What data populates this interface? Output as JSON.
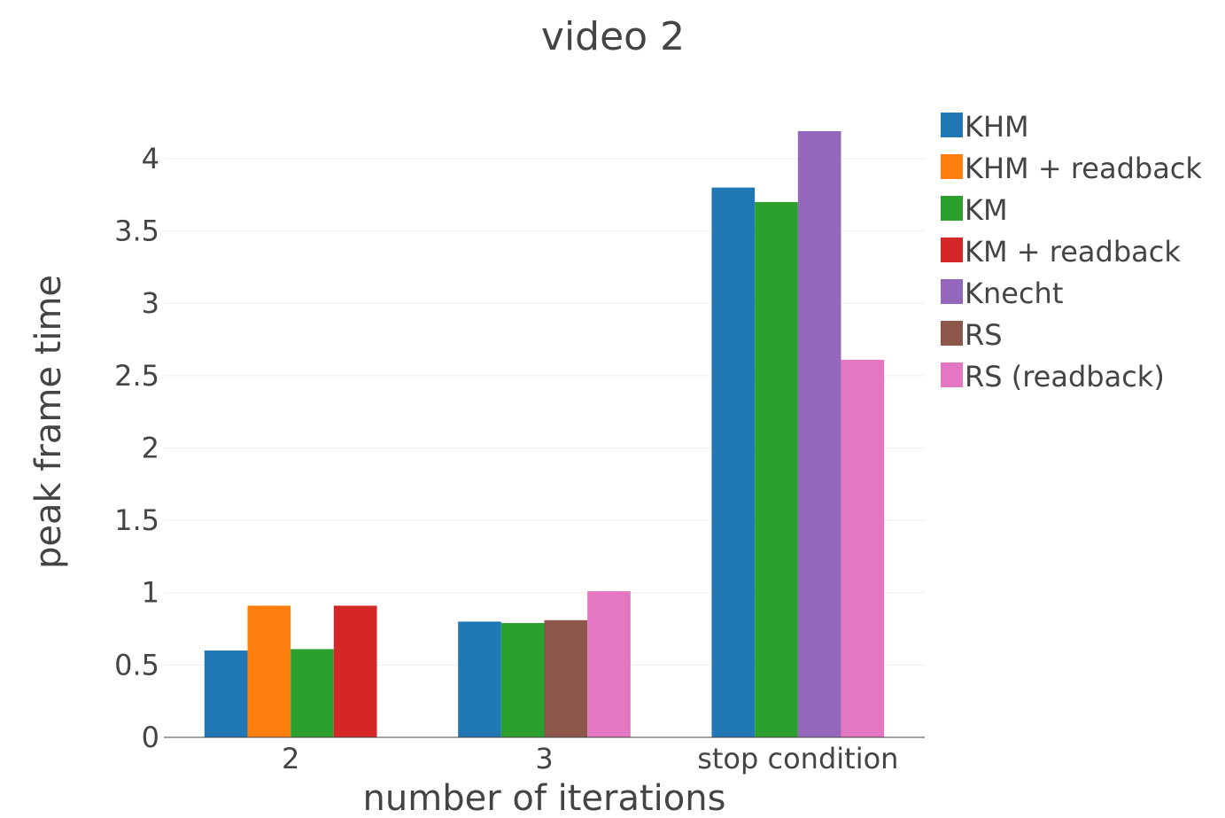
{
  "chart_data": {
    "type": "bar",
    "title": "video 2",
    "xlabel": "number of iterations",
    "ylabel": "peak frame time",
    "categories": [
      "2",
      "3",
      "stop condition"
    ],
    "ylim": [
      0,
      4.3
    ],
    "yticks": [
      0,
      0.5,
      1,
      1.5,
      2,
      2.5,
      3,
      3.5,
      4
    ],
    "ytick_labels": [
      "0",
      "0.5",
      "1",
      "1.5",
      "2",
      "2.5",
      "3",
      "3.5",
      "4"
    ],
    "grid": true,
    "legend_position": "right",
    "series": [
      {
        "name": "KHM",
        "color": "#1f77b4",
        "values": [
          0.6,
          0.8,
          3.8
        ]
      },
      {
        "name": "KHM + readback",
        "color": "#ff7f0e",
        "values": [
          0.91,
          null,
          null
        ]
      },
      {
        "name": "KM",
        "color": "#2ca02c",
        "values": [
          0.61,
          0.79,
          3.7
        ]
      },
      {
        "name": "KM + readback",
        "color": "#d62728",
        "values": [
          0.91,
          null,
          null
        ]
      },
      {
        "name": "Knecht",
        "color": "#9467bd",
        "values": [
          null,
          null,
          4.19
        ]
      },
      {
        "name": "RS",
        "color": "#8c564b",
        "values": [
          null,
          0.81,
          null
        ]
      },
      {
        "name": "RS (readback)",
        "color": "#e377c2",
        "values": [
          null,
          1.01,
          2.61
        ]
      }
    ]
  }
}
